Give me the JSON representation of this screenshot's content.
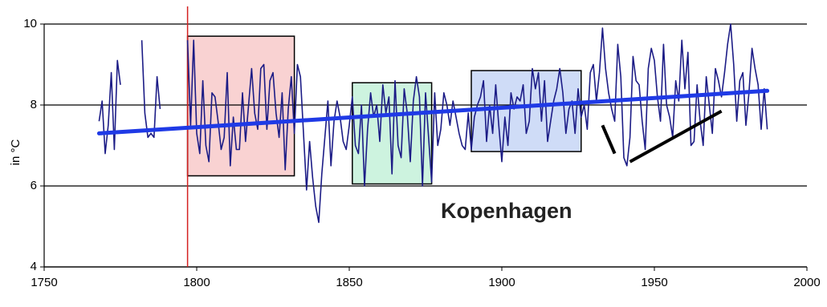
{
  "chart_data": {
    "type": "line",
    "ylabel": "in °C",
    "annotation": "Kopenhagen",
    "annotation_at": [
      1880,
      5.35
    ],
    "xlim": [
      1750,
      2000
    ],
    "xticks": [
      1750,
      1800,
      1850,
      1900,
      1950,
      2000
    ],
    "ylim": [
      4,
      10
    ],
    "yticks": [
      4,
      6,
      8,
      10
    ],
    "grid": true,
    "x": [
      1768,
      1769,
      1770,
      1771,
      1772,
      1773,
      1774,
      1775,
      1776,
      1777,
      1778,
      1779,
      1780,
      1781,
      1782,
      1783,
      1784,
      1785,
      1786,
      1787,
      1788,
      1789,
      1790,
      1791,
      1792,
      1793,
      1794,
      1795,
      1796,
      1797,
      1798,
      1799,
      1800,
      1801,
      1802,
      1803,
      1804,
      1805,
      1806,
      1807,
      1808,
      1809,
      1810,
      1811,
      1812,
      1813,
      1814,
      1815,
      1816,
      1817,
      1818,
      1819,
      1820,
      1821,
      1822,
      1823,
      1824,
      1825,
      1826,
      1827,
      1828,
      1829,
      1830,
      1831,
      1832,
      1833,
      1834,
      1835,
      1836,
      1837,
      1838,
      1839,
      1840,
      1841,
      1842,
      1843,
      1844,
      1845,
      1846,
      1847,
      1848,
      1849,
      1850,
      1851,
      1852,
      1853,
      1854,
      1855,
      1856,
      1857,
      1858,
      1859,
      1860,
      1861,
      1862,
      1863,
      1864,
      1865,
      1866,
      1867,
      1868,
      1869,
      1870,
      1871,
      1872,
      1873,
      1874,
      1875,
      1876,
      1877,
      1878,
      1879,
      1880,
      1881,
      1882,
      1883,
      1884,
      1885,
      1886,
      1887,
      1888,
      1889,
      1890,
      1891,
      1892,
      1893,
      1894,
      1895,
      1896,
      1897,
      1898,
      1899,
      1900,
      1901,
      1902,
      1903,
      1904,
      1905,
      1906,
      1907,
      1908,
      1909,
      1910,
      1911,
      1912,
      1913,
      1914,
      1915,
      1916,
      1917,
      1918,
      1919,
      1920,
      1921,
      1922,
      1923,
      1924,
      1925,
      1926,
      1927,
      1928,
      1929,
      1930,
      1931,
      1932,
      1933,
      1934,
      1935,
      1936,
      1937,
      1938,
      1939,
      1940,
      1941,
      1942,
      1943,
      1944,
      1945,
      1946,
      1947,
      1948,
      1949,
      1950,
      1951,
      1952,
      1953,
      1954,
      1955,
      1956,
      1957,
      1958,
      1959,
      1960,
      1961,
      1962,
      1963,
      1964,
      1965,
      1966,
      1967,
      1968,
      1969,
      1970,
      1971,
      1972,
      1973,
      1974,
      1975,
      1976,
      1977,
      1978,
      1979,
      1980,
      1981,
      1982,
      1983,
      1984,
      1985,
      1986,
      1987
    ],
    "series": [
      {
        "color": "#1c1c86",
        "values": [
          7.6,
          8.1,
          6.8,
          7.5,
          8.8,
          6.9,
          9.1,
          8.5,
          null,
          null,
          null,
          null,
          null,
          null,
          9.6,
          7.8,
          7.2,
          7.3,
          7.2,
          8.7,
          7.9,
          null,
          null,
          null,
          null,
          null,
          null,
          null,
          null,
          9.6,
          7.5,
          9.6,
          7.3,
          6.8,
          8.6,
          7.0,
          6.6,
          8.3,
          8.2,
          7.6,
          6.9,
          7.2,
          8.8,
          6.5,
          7.7,
          6.9,
          6.9,
          8.3,
          7.1,
          8.0,
          8.9,
          7.8,
          7.4,
          8.9,
          9.0,
          7.4,
          8.6,
          8.8,
          7.8,
          7.2,
          8.3,
          6.4,
          7.9,
          8.7,
          7.3,
          9.0,
          8.7,
          7.3,
          5.9,
          7.1,
          6.2,
          5.5,
          5.1,
          6.3,
          7.2,
          8.1,
          6.5,
          7.6,
          8.1,
          7.7,
          7.1,
          6.9,
          7.5,
          8.2,
          7.0,
          6.8,
          8.0,
          6.0,
          7.4,
          8.3,
          7.7,
          8.0,
          7.1,
          8.5,
          7.8,
          8.2,
          6.3,
          8.6,
          7.0,
          6.7,
          8.4,
          7.8,
          6.6,
          8.1,
          8.7,
          8.2,
          6.0,
          8.3,
          7.2,
          6.1,
          8.3,
          7.0,
          7.4,
          8.3,
          8.0,
          7.5,
          8.1,
          7.7,
          7.3,
          7.0,
          6.9,
          7.8,
          6.9,
          7.7,
          8.0,
          8.2,
          8.6,
          7.1,
          8.0,
          7.3,
          8.5,
          7.5,
          6.6,
          7.7,
          7.0,
          8.3,
          7.9,
          8.2,
          8.1,
          8.5,
          7.3,
          7.6,
          8.9,
          8.4,
          8.8,
          7.6,
          8.6,
          7.1,
          7.6,
          8.1,
          8.4,
          8.9,
          8.3,
          7.3,
          7.9,
          8.1,
          7.3,
          8.4,
          7.7,
          8.0,
          7.4,
          8.8,
          9.0,
          8.1,
          8.8,
          9.9,
          8.9,
          8.3,
          7.9,
          7.6,
          9.5,
          8.7,
          6.7,
          6.5,
          7.2,
          9.2,
          8.6,
          8.5,
          7.6,
          6.9,
          8.9,
          9.4,
          9.1,
          8.2,
          7.6,
          9.5,
          8.0,
          7.7,
          7.2,
          8.6,
          8.1,
          9.6,
          8.4,
          9.3,
          7.0,
          7.1,
          8.5,
          7.6,
          7.0,
          8.7,
          8.0,
          7.3,
          8.9,
          8.6,
          8.2,
          8.8,
          9.5,
          10.0,
          9.0,
          7.6,
          8.6,
          8.8,
          7.5,
          8.3,
          9.4,
          8.9,
          8.5,
          7.4,
          8.4,
          7.4
        ]
      }
    ],
    "trend": {
      "color": "#1f3ae6",
      "x": [
        1768,
        1987
      ],
      "values": [
        7.3,
        8.35
      ]
    },
    "vline": {
      "color": "#d42020",
      "x": 1797
    },
    "regions": [
      {
        "color": "#f9d2d2",
        "xlim": [
          1797,
          1832
        ],
        "ylim": [
          6.25,
          9.7
        ]
      },
      {
        "color": "#cdf3df",
        "xlim": [
          1851,
          1877
        ],
        "ylim": [
          6.05,
          8.55
        ]
      },
      {
        "color": "#cfdcf7",
        "xlim": [
          1890,
          1926
        ],
        "ylim": [
          6.85,
          8.85
        ]
      }
    ],
    "marker_lines": [
      {
        "x": [
          1933,
          1937
        ],
        "values": [
          7.5,
          6.8
        ]
      },
      {
        "x": [
          1942,
          1972
        ],
        "values": [
          6.6,
          7.85
        ]
      }
    ]
  }
}
